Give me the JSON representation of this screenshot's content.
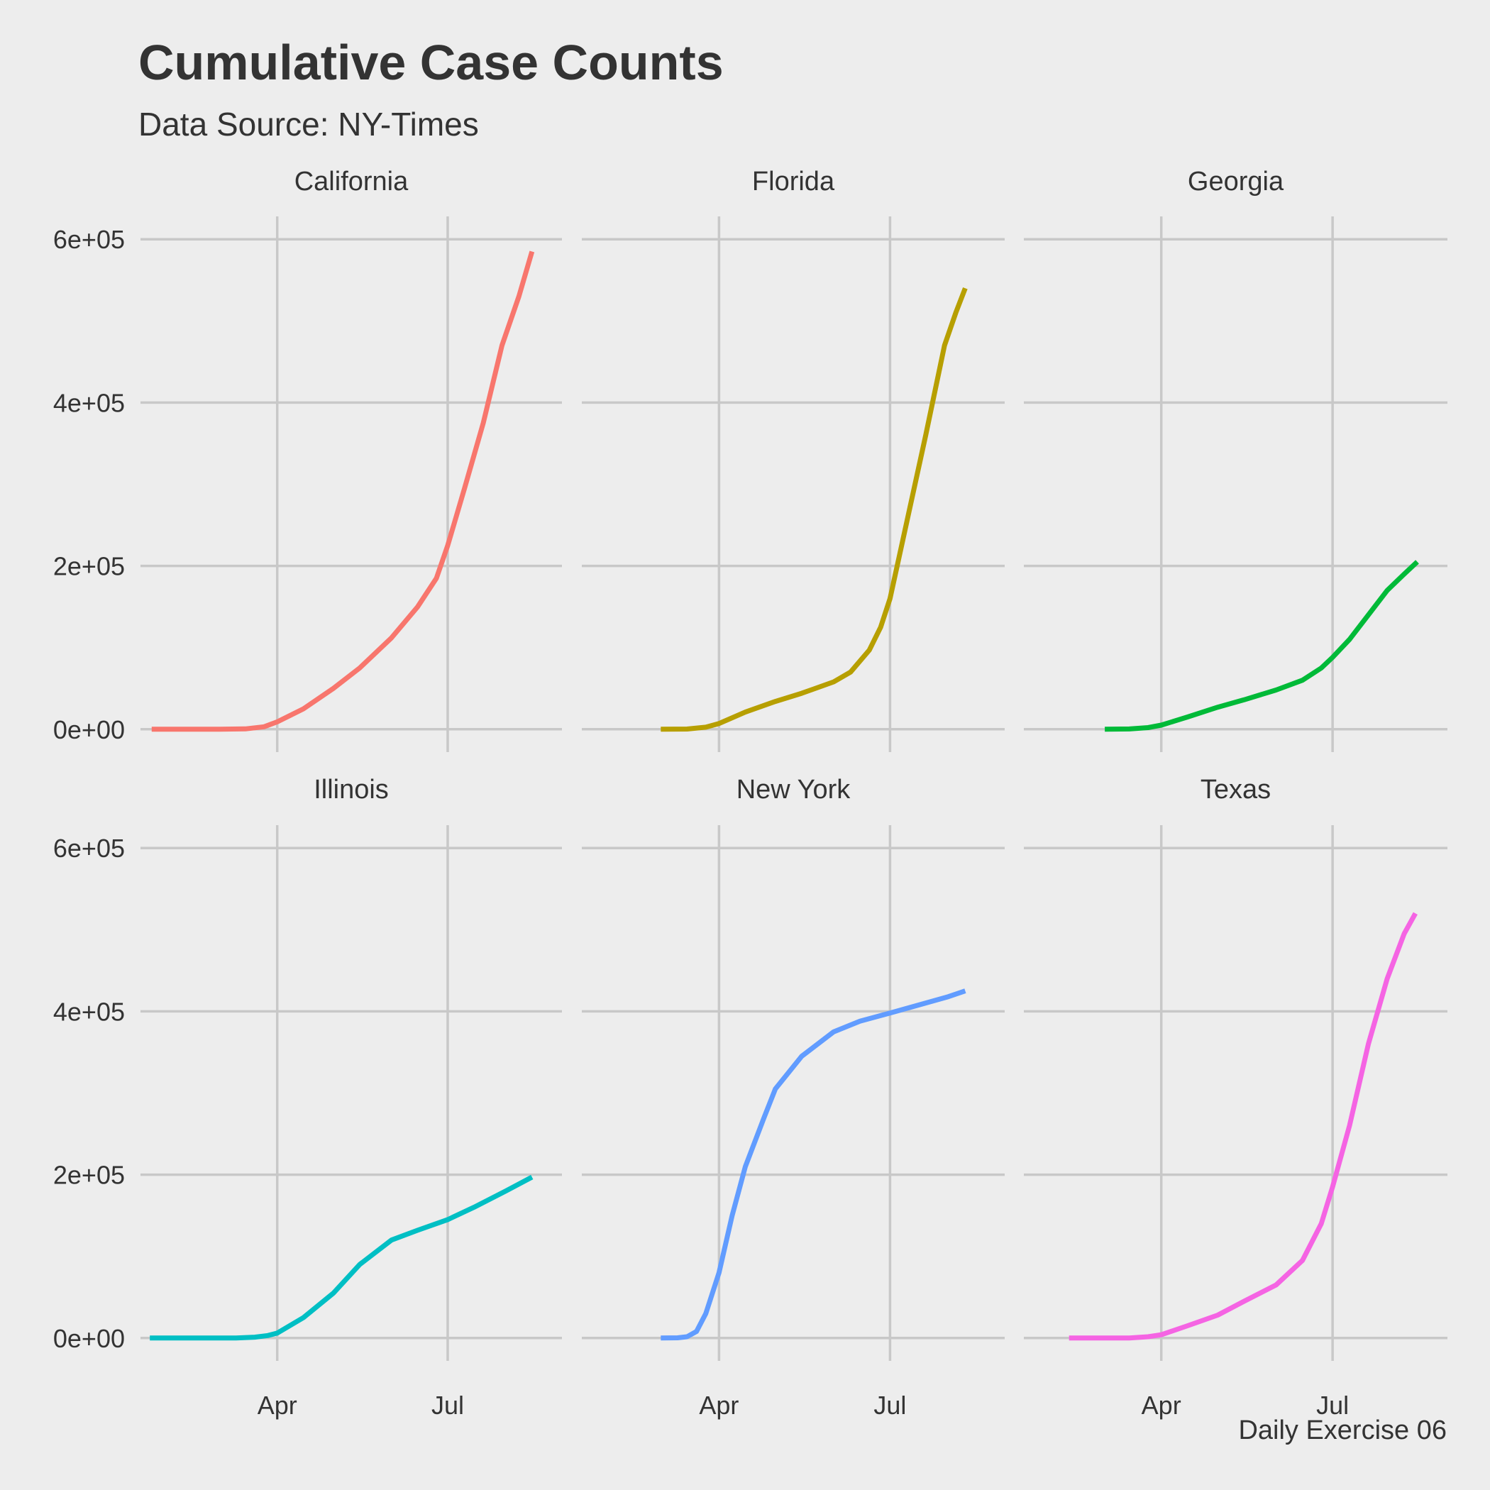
{
  "title": "Cumulative Case Counts",
  "subtitle": "Data Source: NY-Times",
  "caption": "Daily Exercise 06",
  "colors": {
    "background": "#ededed",
    "grid": "#c8c8c8",
    "text": "#333333"
  },
  "chart_data": {
    "type": "line",
    "layout": "facet 2x3",
    "xlabel": "",
    "ylabel": "",
    "grid": true,
    "legend": "none",
    "x_ticks": [
      {
        "label": "Apr",
        "date": "2020-04-01"
      },
      {
        "label": "Jul",
        "date": "2020-07-01"
      }
    ],
    "y_ticks": [
      "0e+00",
      "2e+05",
      "4e+05",
      "6e+05"
    ],
    "y_tick_values": [
      0,
      200000,
      400000,
      600000
    ],
    "xlim": [
      "2020-01-19",
      "2020-08-31"
    ],
    "ylim": [
      -28000,
      628000
    ],
    "series": [
      {
        "name": "California",
        "color": "#F8766D",
        "points": [
          [
            "2020-01-25",
            0
          ],
          [
            "2020-02-15",
            10
          ],
          [
            "2020-03-01",
            50
          ],
          [
            "2020-03-15",
            400
          ],
          [
            "2020-03-25",
            3000
          ],
          [
            "2020-04-01",
            9000
          ],
          [
            "2020-04-15",
            25000
          ],
          [
            "2020-05-01",
            50000
          ],
          [
            "2020-05-15",
            75000
          ],
          [
            "2020-06-01",
            112000
          ],
          [
            "2020-06-15",
            150000
          ],
          [
            "2020-06-25",
            185000
          ],
          [
            "2020-07-01",
            225000
          ],
          [
            "2020-07-10",
            295000
          ],
          [
            "2020-07-20",
            375000
          ],
          [
            "2020-07-30",
            470000
          ],
          [
            "2020-08-08",
            530000
          ],
          [
            "2020-08-15",
            585000
          ]
        ]
      },
      {
        "name": "Florida",
        "color": "#B79F00",
        "points": [
          [
            "2020-03-01",
            0
          ],
          [
            "2020-03-15",
            200
          ],
          [
            "2020-03-25",
            2500
          ],
          [
            "2020-04-01",
            7000
          ],
          [
            "2020-04-15",
            21000
          ],
          [
            "2020-05-01",
            34000
          ],
          [
            "2020-05-15",
            44000
          ],
          [
            "2020-06-01",
            58000
          ],
          [
            "2020-06-10",
            70000
          ],
          [
            "2020-06-20",
            97000
          ],
          [
            "2020-06-26",
            125000
          ],
          [
            "2020-07-01",
            160000
          ],
          [
            "2020-07-10",
            255000
          ],
          [
            "2020-07-20",
            360000
          ],
          [
            "2020-07-30",
            470000
          ],
          [
            "2020-08-05",
            510000
          ],
          [
            "2020-08-10",
            540000
          ]
        ]
      },
      {
        "name": "Georgia",
        "color": "#00BA38",
        "points": [
          [
            "2020-03-02",
            0
          ],
          [
            "2020-03-15",
            300
          ],
          [
            "2020-03-25",
            2000
          ],
          [
            "2020-04-01",
            5000
          ],
          [
            "2020-04-15",
            15000
          ],
          [
            "2020-05-01",
            27000
          ],
          [
            "2020-05-15",
            36000
          ],
          [
            "2020-06-01",
            48000
          ],
          [
            "2020-06-15",
            60000
          ],
          [
            "2020-06-25",
            75000
          ],
          [
            "2020-07-01",
            88000
          ],
          [
            "2020-07-10",
            110000
          ],
          [
            "2020-07-20",
            140000
          ],
          [
            "2020-07-30",
            170000
          ],
          [
            "2020-08-08",
            190000
          ],
          [
            "2020-08-15",
            205000
          ]
        ]
      },
      {
        "name": "Illinois",
        "color": "#00BFC4",
        "points": [
          [
            "2020-01-24",
            0
          ],
          [
            "2020-02-15",
            5
          ],
          [
            "2020-03-10",
            50
          ],
          [
            "2020-03-20",
            1000
          ],
          [
            "2020-03-27",
            3000
          ],
          [
            "2020-04-01",
            6000
          ],
          [
            "2020-04-15",
            25000
          ],
          [
            "2020-05-01",
            55000
          ],
          [
            "2020-05-15",
            90000
          ],
          [
            "2020-06-01",
            120000
          ],
          [
            "2020-06-15",
            132000
          ],
          [
            "2020-07-01",
            145000
          ],
          [
            "2020-07-15",
            160000
          ],
          [
            "2020-08-01",
            180000
          ],
          [
            "2020-08-15",
            197000
          ]
        ]
      },
      {
        "name": "New York",
        "color": "#619CFF",
        "points": [
          [
            "2020-03-01",
            0
          ],
          [
            "2020-03-10",
            200
          ],
          [
            "2020-03-15",
            1500
          ],
          [
            "2020-03-20",
            8000
          ],
          [
            "2020-03-25",
            30000
          ],
          [
            "2020-04-01",
            80000
          ],
          [
            "2020-04-08",
            150000
          ],
          [
            "2020-04-15",
            210000
          ],
          [
            "2020-04-25",
            270000
          ],
          [
            "2020-05-01",
            305000
          ],
          [
            "2020-05-15",
            345000
          ],
          [
            "2020-06-01",
            375000
          ],
          [
            "2020-06-15",
            388000
          ],
          [
            "2020-07-01",
            398000
          ],
          [
            "2020-07-15",
            407000
          ],
          [
            "2020-08-01",
            418000
          ],
          [
            "2020-08-10",
            425000
          ]
        ]
      },
      {
        "name": "Texas",
        "color": "#F564E3",
        "points": [
          [
            "2020-02-12",
            0
          ],
          [
            "2020-03-01",
            10
          ],
          [
            "2020-03-15",
            100
          ],
          [
            "2020-03-25",
            1500
          ],
          [
            "2020-04-01",
            4000
          ],
          [
            "2020-04-15",
            15000
          ],
          [
            "2020-05-01",
            28000
          ],
          [
            "2020-05-15",
            45000
          ],
          [
            "2020-06-01",
            65000
          ],
          [
            "2020-06-15",
            95000
          ],
          [
            "2020-06-25",
            140000
          ],
          [
            "2020-07-01",
            185000
          ],
          [
            "2020-07-10",
            260000
          ],
          [
            "2020-07-20",
            360000
          ],
          [
            "2020-07-30",
            440000
          ],
          [
            "2020-08-08",
            495000
          ],
          [
            "2020-08-14",
            520000
          ]
        ]
      }
    ]
  }
}
